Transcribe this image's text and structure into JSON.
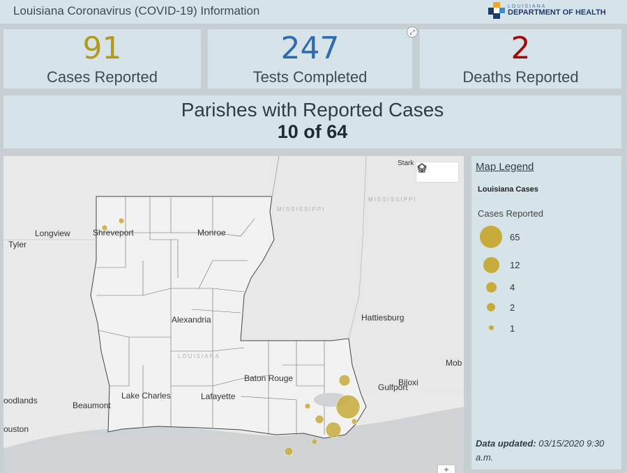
{
  "header": {
    "title": "Louisiana Coronavirus (COVID-19) Information",
    "logo": {
      "state": "LOUISIANA",
      "dept": "DEPARTMENT OF HEALTH"
    }
  },
  "stats": {
    "cases": {
      "value": "91",
      "label": "Cases Reported",
      "color": "#b39a1e"
    },
    "tests": {
      "value": "247",
      "label": "Tests Completed",
      "color": "#2f6bb0"
    },
    "deaths": {
      "value": "2",
      "label": "Deaths Reported",
      "color": "#a30a0a"
    }
  },
  "parishes": {
    "title": "Parishes with Reported Cases",
    "count": "10 of 64"
  },
  "map": {
    "cities": {
      "longview": "Longview",
      "tyler": "Tyler",
      "shreveport": "Shreveport",
      "monroe": "Monroe",
      "alexandria": "Alexandria",
      "hattiesburg": "Hattiesburg",
      "baton_rouge": "Baton Rouge",
      "gulfport": "Gulfport",
      "biloxi": "Biloxi",
      "mobile": "Mob",
      "lake_charles": "Lake Charles",
      "lafayette": "Lafayette",
      "beaumont": "Beaumont",
      "woodlands": "oodlands",
      "houston": "ouston",
      "stark": "Stark"
    },
    "labels": {
      "mississippi": "MISSISSIPPI",
      "louisiana": "LOUISIANA"
    },
    "buttons": {
      "home_icon": "home-icon",
      "layers_icon": "layers-icon",
      "zoom": "+"
    }
  },
  "legend": {
    "title": "Map Legend",
    "layer": "Louisiana Cases",
    "field": "Cases Reported",
    "classes": [
      "65",
      "12",
      "4",
      "2",
      "1"
    ],
    "symbol_color": "#c7ac3c",
    "updated_label": "Data updated:",
    "updated_value": "03/15/2020 9:30 a.m."
  }
}
